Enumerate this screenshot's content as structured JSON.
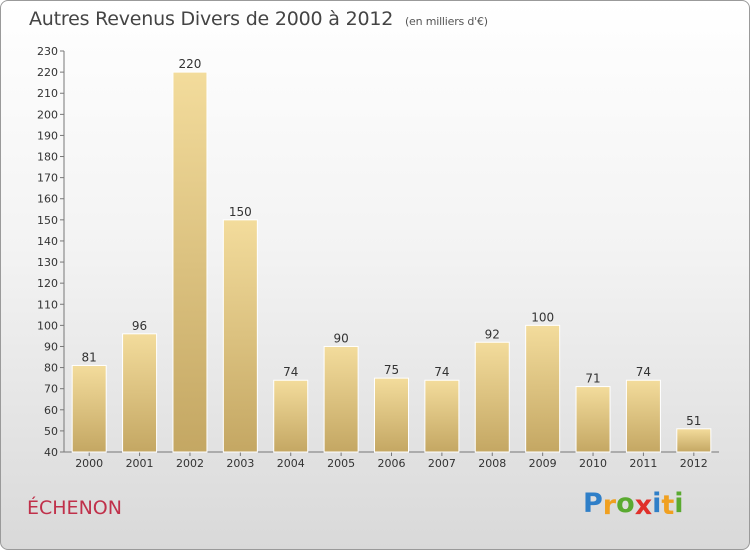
{
  "chart_data": {
    "type": "bar",
    "title": "Autres Revenus Divers de 2000 à 2012",
    "subtitle": "(en milliers d'€)",
    "xlabel": "",
    "ylabel": "",
    "categories": [
      "2000",
      "2001",
      "2002",
      "2003",
      "2004",
      "2005",
      "2006",
      "2007",
      "2008",
      "2009",
      "2010",
      "2011",
      "2012"
    ],
    "values": [
      81,
      96,
      220,
      150,
      74,
      90,
      75,
      74,
      92,
      100,
      71,
      74,
      51
    ],
    "ylim": [
      40,
      230
    ],
    "ytick_step": 10,
    "grid": false,
    "legend": "none",
    "bar_color_light": "#f3dc9c",
    "bar_color_dark": "#c4a763"
  },
  "location": "ÉCHENON",
  "brand": {
    "letters": [
      "P",
      "r",
      "o",
      "x",
      "i",
      "t",
      "i"
    ],
    "colors": [
      "#2f7fc8",
      "#f0a020",
      "#5aaa30",
      "#e0302a",
      "#2f7fc8",
      "#f0a020",
      "#5aaa30"
    ]
  }
}
